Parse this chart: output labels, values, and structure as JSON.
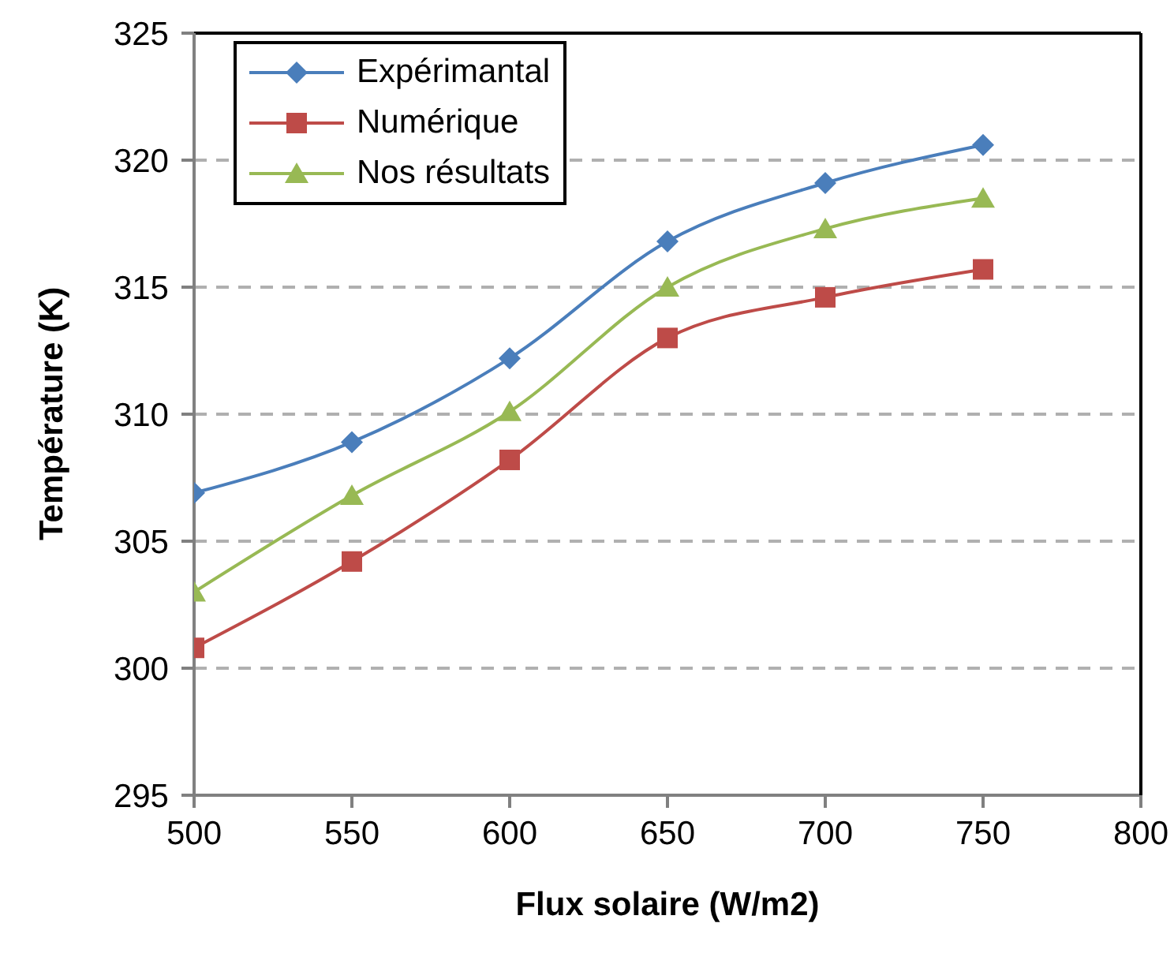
{
  "chart_data": {
    "type": "line",
    "xlabel": "Flux solaire  (W/m2)",
    "ylabel": "Température (K)",
    "x": [
      500,
      550,
      600,
      650,
      700,
      750
    ],
    "series": [
      {
        "name": "Expérimantal",
        "color": "#4a7ebb",
        "marker": "diamond",
        "values": [
          306.9,
          308.9,
          312.2,
          316.8,
          319.1,
          320.6
        ]
      },
      {
        "name": "Numérique",
        "color": "#be4b48",
        "marker": "square",
        "values": [
          300.8,
          304.2,
          308.2,
          313.0,
          314.6,
          315.7
        ]
      },
      {
        "name": "Nos résultats",
        "color": "#98b954",
        "marker": "triangle",
        "values": [
          303.0,
          306.8,
          310.1,
          315.0,
          317.3,
          318.5
        ]
      }
    ],
    "xlim": [
      500,
      800
    ],
    "xticks": [
      500,
      550,
      600,
      650,
      700,
      750,
      800
    ],
    "ylim": [
      295,
      325
    ],
    "yticks": [
      295,
      300,
      305,
      310,
      315,
      320,
      325
    ],
    "grid": "y",
    "legend": "top left",
    "line_style": "solid"
  }
}
